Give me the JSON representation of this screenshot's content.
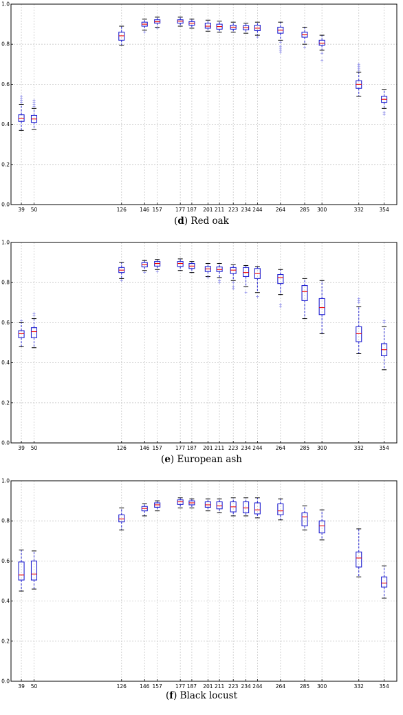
{
  "chart_data": [
    {
      "type": "box",
      "panel_letter": "d",
      "caption": "Red oak",
      "ylim": [
        0,
        1.0
      ],
      "yticks": [
        "0.0",
        "0.2",
        "0.4",
        "0.6",
        "0.8",
        "1.0"
      ],
      "grid": true,
      "x": [
        39,
        50,
        126,
        146,
        157,
        177,
        187,
        201,
        211,
        223,
        234,
        244,
        264,
        285,
        300,
        332,
        354
      ],
      "boxes": [
        {
          "x": 39,
          "q1": 0.415,
          "median": 0.43,
          "q3": 0.448,
          "whislo": 0.37,
          "whishi": 0.5,
          "fliers": [
            0.51,
            0.52,
            0.53,
            0.54
          ]
        },
        {
          "x": 50,
          "q1": 0.41,
          "median": 0.427,
          "q3": 0.445,
          "whislo": 0.375,
          "whishi": 0.48,
          "fliers": [
            0.49,
            0.5,
            0.51,
            0.52
          ]
        },
        {
          "x": 126,
          "q1": 0.82,
          "median": 0.842,
          "q3": 0.86,
          "whislo": 0.795,
          "whishi": 0.89,
          "fliers": []
        },
        {
          "x": 146,
          "q1": 0.89,
          "median": 0.9,
          "q3": 0.91,
          "whislo": 0.87,
          "whishi": 0.925,
          "fliers": [
            0.86
          ]
        },
        {
          "x": 157,
          "q1": 0.905,
          "median": 0.912,
          "q3": 0.922,
          "whislo": 0.885,
          "whishi": 0.935,
          "fliers": [
            0.88
          ]
        },
        {
          "x": 177,
          "q1": 0.905,
          "median": 0.915,
          "q3": 0.922,
          "whislo": 0.89,
          "whishi": 0.935,
          "fliers": []
        },
        {
          "x": 187,
          "q1": 0.895,
          "median": 0.905,
          "q3": 0.913,
          "whislo": 0.88,
          "whishi": 0.925,
          "fliers": []
        },
        {
          "x": 201,
          "q1": 0.88,
          "median": 0.89,
          "q3": 0.905,
          "whislo": 0.865,
          "whishi": 0.92,
          "fliers": []
        },
        {
          "x": 211,
          "q1": 0.875,
          "median": 0.888,
          "q3": 0.9,
          "whislo": 0.86,
          "whishi": 0.915,
          "fliers": []
        },
        {
          "x": 223,
          "q1": 0.875,
          "median": 0.885,
          "q3": 0.895,
          "whislo": 0.86,
          "whishi": 0.91,
          "fliers": []
        },
        {
          "x": 234,
          "q1": 0.872,
          "median": 0.882,
          "q3": 0.892,
          "whislo": 0.855,
          "whishi": 0.905,
          "fliers": []
        },
        {
          "x": 244,
          "q1": 0.868,
          "median": 0.88,
          "q3": 0.895,
          "whislo": 0.845,
          "whishi": 0.91,
          "fliers": [
            0.835
          ]
        },
        {
          "x": 264,
          "q1": 0.855,
          "median": 0.87,
          "q3": 0.885,
          "whislo": 0.82,
          "whishi": 0.91,
          "fliers": [
            0.81,
            0.79,
            0.78,
            0.77,
            0.76
          ]
        },
        {
          "x": 285,
          "q1": 0.835,
          "median": 0.847,
          "q3": 0.86,
          "whislo": 0.8,
          "whishi": 0.885,
          "fliers": [
            0.785
          ]
        },
        {
          "x": 300,
          "q1": 0.795,
          "median": 0.805,
          "q3": 0.82,
          "whislo": 0.77,
          "whishi": 0.845,
          "fliers": [
            0.755,
            0.72
          ]
        },
        {
          "x": 332,
          "q1": 0.58,
          "median": 0.6,
          "q3": 0.618,
          "whislo": 0.54,
          "whishi": 0.66,
          "fliers": [
            0.67,
            0.68,
            0.69,
            0.7
          ]
        },
        {
          "x": 354,
          "q1": 0.51,
          "median": 0.525,
          "q3": 0.54,
          "whislo": 0.48,
          "whishi": 0.575,
          "fliers": [
            0.46,
            0.45
          ]
        }
      ]
    },
    {
      "type": "box",
      "panel_letter": "e",
      "caption": "European ash",
      "ylim": [
        0,
        1.0
      ],
      "yticks": [
        "0.0",
        "0.2",
        "0.4",
        "0.6",
        "0.8",
        "1.0"
      ],
      "grid": true,
      "x": [
        39,
        50,
        126,
        146,
        157,
        177,
        187,
        201,
        211,
        223,
        234,
        244,
        264,
        285,
        300,
        332,
        354
      ],
      "boxes": [
        {
          "x": 39,
          "q1": 0.525,
          "median": 0.545,
          "q3": 0.56,
          "whislo": 0.48,
          "whishi": 0.6,
          "fliers": [
            0.61
          ]
        },
        {
          "x": 50,
          "q1": 0.525,
          "median": 0.555,
          "q3": 0.575,
          "whislo": 0.475,
          "whishi": 0.62,
          "fliers": [
            0.635,
            0.645
          ]
        },
        {
          "x": 126,
          "q1": 0.85,
          "median": 0.862,
          "q3": 0.875,
          "whislo": 0.82,
          "whishi": 0.9,
          "fliers": [
            0.81
          ]
        },
        {
          "x": 146,
          "q1": 0.878,
          "median": 0.89,
          "q3": 0.9,
          "whislo": 0.86,
          "whishi": 0.91,
          "fliers": [
            0.85
          ]
        },
        {
          "x": 157,
          "q1": 0.882,
          "median": 0.895,
          "q3": 0.905,
          "whislo": 0.865,
          "whishi": 0.915,
          "fliers": [
            0.855
          ]
        },
        {
          "x": 177,
          "q1": 0.88,
          "median": 0.895,
          "q3": 0.905,
          "whislo": 0.86,
          "whishi": 0.918,
          "fliers": []
        },
        {
          "x": 187,
          "q1": 0.87,
          "median": 0.882,
          "q3": 0.895,
          "whislo": 0.85,
          "whishi": 0.905,
          "fliers": []
        },
        {
          "x": 201,
          "q1": 0.855,
          "median": 0.868,
          "q3": 0.88,
          "whislo": 0.83,
          "whishi": 0.895,
          "fliers": [
            0.825
          ]
        },
        {
          "x": 211,
          "q1": 0.855,
          "median": 0.865,
          "q3": 0.878,
          "whislo": 0.825,
          "whishi": 0.895,
          "fliers": [
            0.81,
            0.8
          ]
        },
        {
          "x": 223,
          "q1": 0.845,
          "median": 0.862,
          "q3": 0.875,
          "whislo": 0.81,
          "whishi": 0.89,
          "fliers": [
            0.8,
            0.78,
            0.77
          ]
        },
        {
          "x": 234,
          "q1": 0.83,
          "median": 0.85,
          "q3": 0.875,
          "whislo": 0.78,
          "whishi": 0.885,
          "fliers": [
            0.75
          ]
        },
        {
          "x": 244,
          "q1": 0.82,
          "median": 0.845,
          "q3": 0.87,
          "whislo": 0.75,
          "whishi": 0.88,
          "fliers": [
            0.73
          ]
        },
        {
          "x": 264,
          "q1": 0.795,
          "median": 0.825,
          "q3": 0.84,
          "whislo": 0.74,
          "whishi": 0.865,
          "fliers": [
            0.69,
            0.68
          ]
        },
        {
          "x": 285,
          "q1": 0.71,
          "median": 0.755,
          "q3": 0.785,
          "whislo": 0.62,
          "whishi": 0.82,
          "fliers": []
        },
        {
          "x": 300,
          "q1": 0.64,
          "median": 0.675,
          "q3": 0.72,
          "whislo": 0.545,
          "whishi": 0.81,
          "fliers": []
        },
        {
          "x": 332,
          "q1": 0.505,
          "median": 0.545,
          "q3": 0.58,
          "whislo": 0.445,
          "whishi": 0.68,
          "fliers": [
            0.7,
            0.71,
            0.72
          ]
        },
        {
          "x": 354,
          "q1": 0.435,
          "median": 0.465,
          "q3": 0.495,
          "whislo": 0.365,
          "whishi": 0.58,
          "fliers": [
            0.6,
            0.61
          ]
        }
      ]
    },
    {
      "type": "box",
      "panel_letter": "f",
      "caption": "Black locust",
      "ylim": [
        0,
        1.0
      ],
      "yticks": [
        "0.0",
        "0.2",
        "0.4",
        "0.6",
        "0.8",
        "1.0"
      ],
      "grid": true,
      "x": [
        39,
        50,
        126,
        146,
        157,
        177,
        187,
        201,
        211,
        223,
        234,
        244,
        264,
        285,
        300,
        332,
        354
      ],
      "boxes": [
        {
          "x": 39,
          "q1": 0.505,
          "median": 0.53,
          "q3": 0.595,
          "whislo": 0.45,
          "whishi": 0.655,
          "fliers": []
        },
        {
          "x": 50,
          "q1": 0.505,
          "median": 0.535,
          "q3": 0.6,
          "whislo": 0.46,
          "whishi": 0.65,
          "fliers": []
        },
        {
          "x": 126,
          "q1": 0.795,
          "median": 0.81,
          "q3": 0.83,
          "whislo": 0.755,
          "whishi": 0.865,
          "fliers": []
        },
        {
          "x": 146,
          "q1": 0.85,
          "median": 0.862,
          "q3": 0.872,
          "whislo": 0.825,
          "whishi": 0.885,
          "fliers": []
        },
        {
          "x": 157,
          "q1": 0.868,
          "median": 0.88,
          "q3": 0.89,
          "whislo": 0.85,
          "whishi": 0.9,
          "fliers": []
        },
        {
          "x": 177,
          "q1": 0.882,
          "median": 0.895,
          "q3": 0.905,
          "whislo": 0.865,
          "whishi": 0.915,
          "fliers": []
        },
        {
          "x": 187,
          "q1": 0.88,
          "median": 0.89,
          "q3": 0.9,
          "whislo": 0.865,
          "whishi": 0.91,
          "fliers": []
        },
        {
          "x": 201,
          "q1": 0.868,
          "median": 0.88,
          "q3": 0.895,
          "whislo": 0.85,
          "whishi": 0.91,
          "fliers": []
        },
        {
          "x": 211,
          "q1": 0.86,
          "median": 0.875,
          "q3": 0.895,
          "whislo": 0.84,
          "whishi": 0.91,
          "fliers": []
        },
        {
          "x": 223,
          "q1": 0.845,
          "median": 0.87,
          "q3": 0.895,
          "whislo": 0.825,
          "whishi": 0.915,
          "fliers": []
        },
        {
          "x": 234,
          "q1": 0.84,
          "median": 0.865,
          "q3": 0.895,
          "whislo": 0.825,
          "whishi": 0.915,
          "fliers": []
        },
        {
          "x": 244,
          "q1": 0.835,
          "median": 0.855,
          "q3": 0.89,
          "whislo": 0.815,
          "whishi": 0.915,
          "fliers": []
        },
        {
          "x": 264,
          "q1": 0.83,
          "median": 0.85,
          "q3": 0.885,
          "whislo": 0.805,
          "whishi": 0.91,
          "fliers": []
        },
        {
          "x": 285,
          "q1": 0.775,
          "median": 0.82,
          "q3": 0.84,
          "whislo": 0.755,
          "whishi": 0.875,
          "fliers": []
        },
        {
          "x": 300,
          "q1": 0.74,
          "median": 0.775,
          "q3": 0.8,
          "whislo": 0.705,
          "whishi": 0.855,
          "fliers": []
        },
        {
          "x": 332,
          "q1": 0.57,
          "median": 0.615,
          "q3": 0.645,
          "whislo": 0.52,
          "whishi": 0.76,
          "fliers": []
        },
        {
          "x": 354,
          "q1": 0.47,
          "median": 0.49,
          "q3": 0.52,
          "whislo": 0.415,
          "whishi": 0.575,
          "fliers": []
        }
      ]
    }
  ],
  "colors": {
    "box": "#2020d0",
    "median": "#ee0000",
    "whisker": "#2020d0",
    "cap": "#000000",
    "flier": "#8a8ae8",
    "grid": "#c8c8c8",
    "axis": "#000000"
  }
}
